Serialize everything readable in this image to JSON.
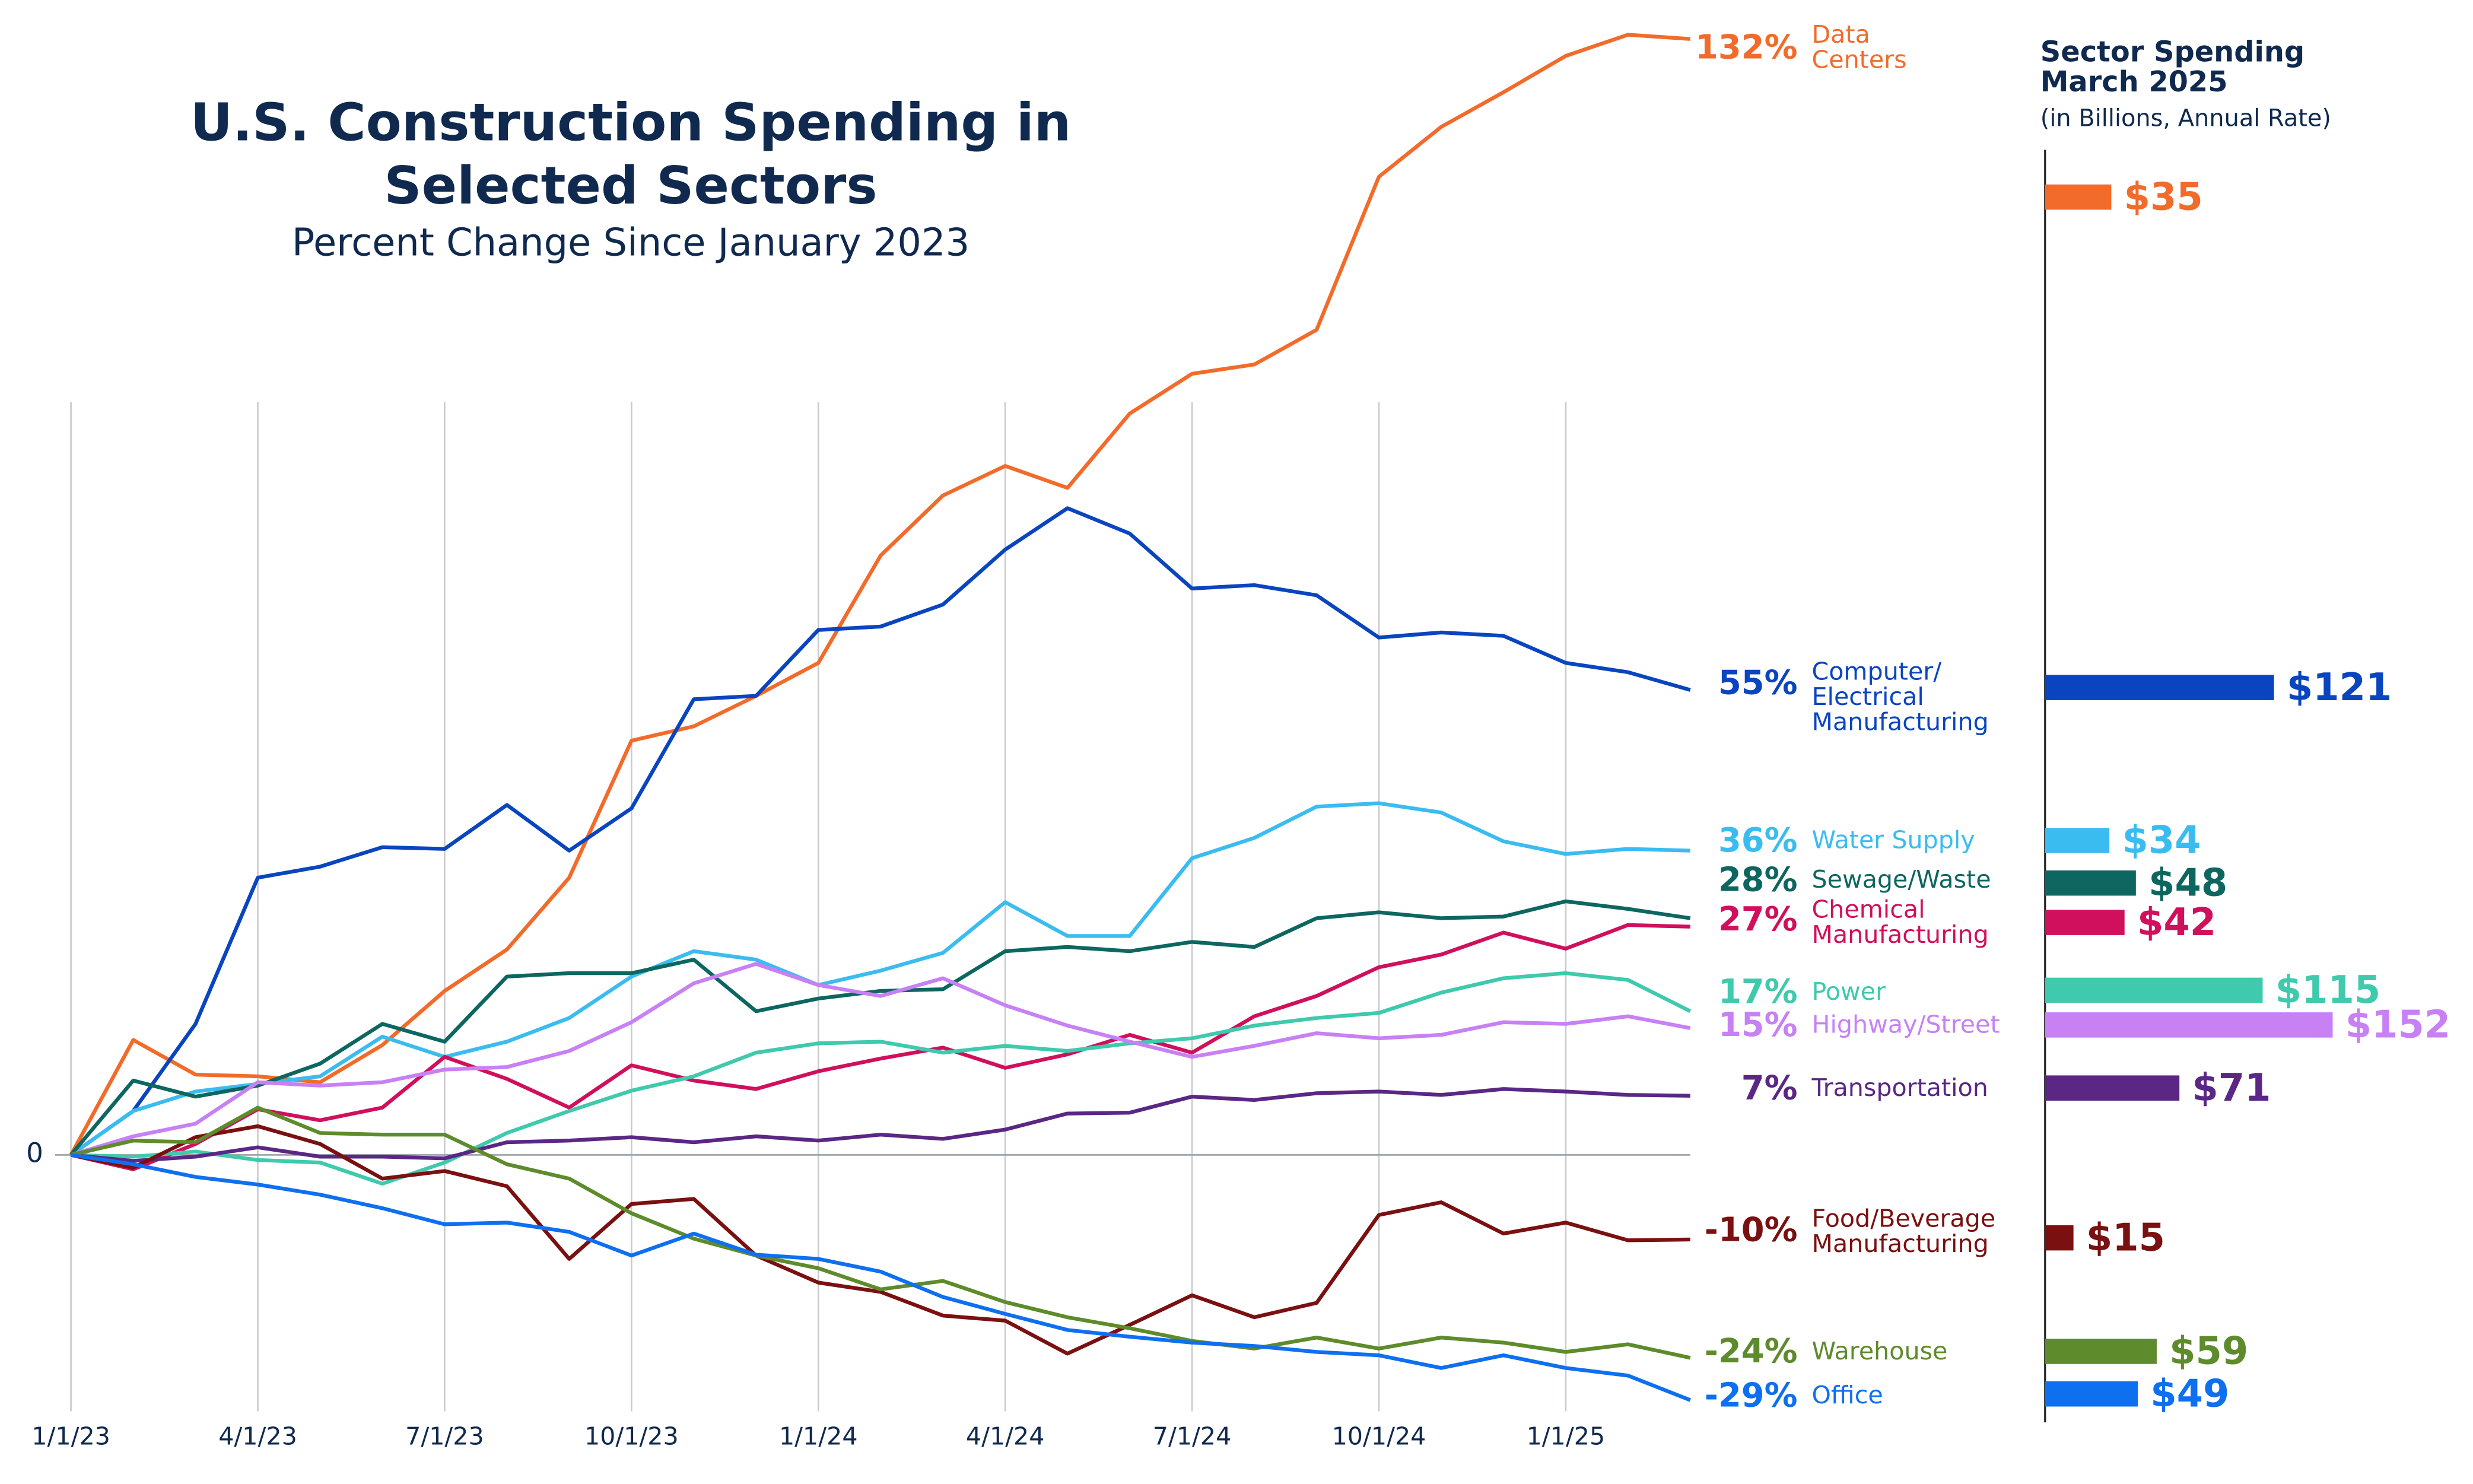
{
  "chart_data": {
    "type": "line",
    "title": "U.S. Construction Spending in Selected Sectors",
    "subtitle": "Percent Change Since January 2023",
    "spending_title": "Sector Spending March 2025",
    "spending_subtitle": "(in Billions, Annual Rate)",
    "categories": [
      "1/1/23",
      null,
      null,
      "4/1/23",
      null,
      null,
      "7/1/23",
      null,
      null,
      "10/1/23",
      null,
      null,
      "1/1/24",
      null,
      null,
      "4/1/24",
      null,
      null,
      "7/1/24",
      null,
      null,
      "10/1/24",
      null,
      null,
      "1/1/25",
      null,
      null
    ],
    "ylim": [
      -32,
      134
    ],
    "yticks": [
      0
    ],
    "series": [
      {
        "name": "Data Centers",
        "color": "#f26b2a",
        "end_label": "132%",
        "spending": 35,
        "spending_label": "$35",
        "values": [
          0,
          13.6,
          9.5,
          9.3,
          8.6,
          13,
          19.4,
          24.3,
          32.8,
          49,
          50.7,
          54.3,
          58.2,
          70.9,
          78,
          81.5,
          78.9,
          87.7,
          92.4,
          93.5,
          97.6,
          115.7,
          121.6,
          125.7,
          130,
          132.5,
          132
        ]
      },
      {
        "name": "Computer/ Electrical Manufacturing",
        "color": "#0a45c0",
        "end_label": "55%",
        "spending": 121,
        "spending_label": "$121",
        "values": [
          0,
          5.2,
          15.5,
          32.8,
          34.1,
          36.4,
          36.2,
          41.4,
          36,
          41,
          53.9,
          54.3,
          62.1,
          62.5,
          65.1,
          71.6,
          76.5,
          73.5,
          67,
          67.4,
          66.2,
          61.2,
          61.8,
          61.4,
          58.2,
          57.1,
          55
        ]
      },
      {
        "name": "Water Supply",
        "color": "#3bbcf0",
        "end_label": "36%",
        "spending": 34,
        "spending_label": "$34",
        "values": [
          0,
          5.2,
          7.5,
          8.4,
          9.3,
          14,
          11.6,
          13.4,
          16.2,
          21.1,
          24.1,
          23.1,
          20.1,
          21.8,
          23.9,
          29.9,
          25.9,
          25.9,
          35.1,
          37.5,
          41.2,
          41.6,
          40.5,
          37.1,
          35.6,
          36.2,
          36
        ]
      },
      {
        "name": "Sewage/Waste",
        "color": "#0d6660",
        "end_label": "28%",
        "spending": 48,
        "spending_label": "$48",
        "values": [
          0,
          8.8,
          6.9,
          8.2,
          10.8,
          15.5,
          13.4,
          21.1,
          21.5,
          21.5,
          23.1,
          17,
          18.5,
          19.4,
          19.6,
          24.1,
          24.6,
          24.1,
          25.2,
          24.6,
          28,
          28.7,
          28,
          28.2,
          30,
          29.1,
          28
        ]
      },
      {
        "name": "Chemical Manufacturing",
        "color": "#d0105c",
        "end_label": "27%",
        "spending": 42,
        "spending_label": "$42",
        "values": [
          0,
          -1.7,
          1.3,
          5.4,
          4.1,
          5.6,
          11.6,
          9,
          5.6,
          10.6,
          8.8,
          7.8,
          9.9,
          11.4,
          12.7,
          10.3,
          11.9,
          14.2,
          12.1,
          16.4,
          18.8,
          22.2,
          23.7,
          26.3,
          24.4,
          27.2,
          27
        ]
      },
      {
        "name": "Power",
        "color": "#3fc9ad",
        "end_label": "17%",
        "spending": 115,
        "spending_label": "$115",
        "values": [
          0,
          -0.2,
          0.4,
          -0.6,
          -0.9,
          -3.4,
          -0.9,
          2.6,
          5.2,
          7.6,
          9.3,
          12.1,
          13.2,
          13.4,
          12.1,
          12.9,
          12.3,
          13.2,
          13.8,
          15.3,
          16.2,
          16.8,
          19.2,
          20.9,
          21.5,
          20.7,
          17
        ]
      },
      {
        "name": "Highway/Street",
        "color": "#c880f5",
        "end_label": "15%",
        "spending": 152,
        "spending_label": "$152",
        "values": [
          0,
          2.2,
          3.7,
          8.6,
          8.2,
          8.6,
          10.1,
          10.4,
          12.3,
          15.7,
          20.3,
          22.6,
          20.1,
          18.8,
          20.9,
          17.7,
          15.3,
          13.4,
          11.6,
          12.9,
          14.4,
          13.8,
          14.2,
          15.7,
          15.5,
          16.4,
          15
        ]
      },
      {
        "name": "Transportation",
        "color": "#5a2785",
        "end_label": "7%",
        "spending": 71,
        "spending_label": "$71",
        "values": [
          0,
          -0.7,
          -0.2,
          0.9,
          -0.2,
          -0.2,
          -0.4,
          1.5,
          1.7,
          2.1,
          1.5,
          2.2,
          1.7,
          2.4,
          1.9,
          3,
          4.9,
          5,
          6.9,
          6.5,
          7.3,
          7.5,
          7.1,
          7.8,
          7.5,
          7.1,
          7
        ]
      },
      {
        "name": "Food/Beverage Manufacturing",
        "color": "#7a1010",
        "end_label": "-10%",
        "spending": 15,
        "spending_label": "$15",
        "values": [
          0,
          -1.5,
          2.1,
          3.4,
          1.3,
          -2.8,
          -1.9,
          -3.7,
          -12.3,
          -5.8,
          -5.2,
          -11.9,
          -15.1,
          -16.2,
          -19,
          -19.6,
          -23.5,
          -20.1,
          -16.6,
          -19.2,
          -17.5,
          -7.1,
          -5.6,
          -9.3,
          -8,
          -10.1,
          -10
        ]
      },
      {
        "name": "Warehouse",
        "color": "#5e8b2b",
        "end_label": "-24%",
        "spending": 59,
        "spending_label": "$59",
        "values": [
          0,
          1.7,
          1.5,
          5.6,
          2.6,
          2.4,
          2.4,
          -1.1,
          -2.8,
          -6.9,
          -9.9,
          -11.9,
          -13.4,
          -15.9,
          -14.9,
          -17.4,
          -19.2,
          -20.5,
          -22,
          -22.9,
          -21.6,
          -22.9,
          -21.6,
          -22.2,
          -23.3,
          -22.4,
          -24
        ]
      },
      {
        "name": "Office",
        "color": "#0e6ff0",
        "end_label": "-29%",
        "spending": 49,
        "spending_label": "$49",
        "values": [
          0,
          -1.1,
          -2.6,
          -3.5,
          -4.7,
          -6.3,
          -8.2,
          -8,
          -9.1,
          -11.9,
          -9.3,
          -11.8,
          -12.3,
          -13.8,
          -16.8,
          -18.8,
          -20.7,
          -21.5,
          -22.2,
          -22.6,
          -23.3,
          -23.7,
          -25.2,
          -23.7,
          -25.2,
          -26.1,
          -29
        ]
      }
    ]
  }
}
